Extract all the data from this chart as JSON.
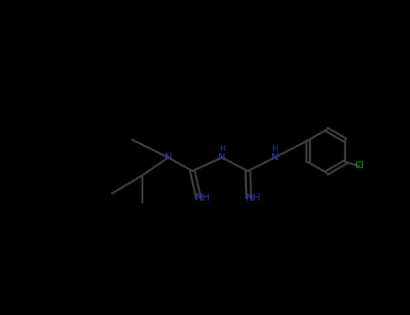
{
  "background_color": "#000000",
  "bond_color": "#404040",
  "N_color": "#3333bb",
  "Cl_color": "#00bb00",
  "fig_width": 4.55,
  "fig_height": 3.5,
  "dpi": 100,
  "bond_lw": 1.6,
  "xlim": [
    0,
    10
  ],
  "ylim": [
    0,
    8
  ]
}
